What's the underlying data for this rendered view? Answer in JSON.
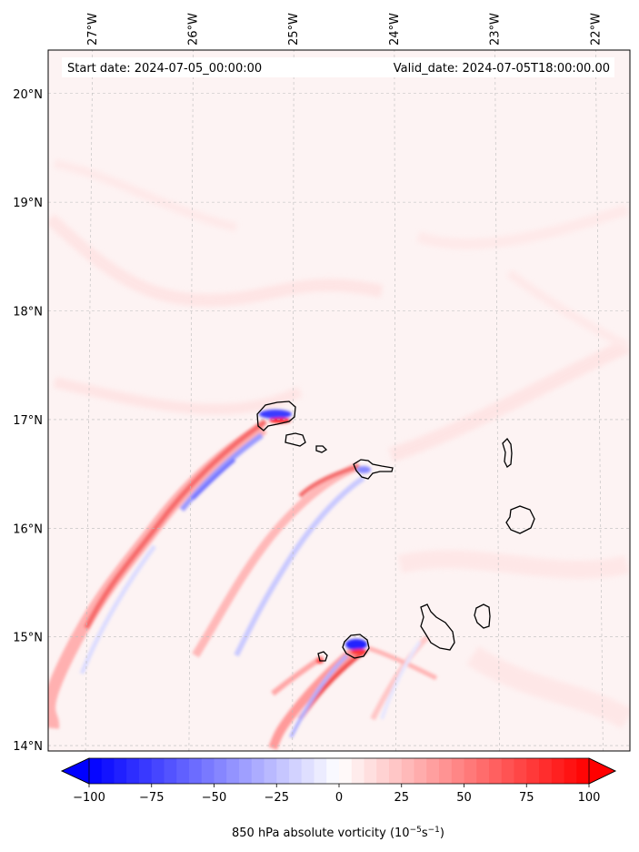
{
  "header": {
    "start_date": "Start date: 2024-07-05_00:00:00",
    "valid_date": "Valid_date: 2024-07-05T18:00:00.00"
  },
  "map": {
    "lon_range": [
      -27.4,
      -21.7
    ],
    "lat_range": [
      13.95,
      20.4
    ],
    "grid_lines": true,
    "lon_ticks": [
      {
        "value": -27,
        "label": "27°W"
      },
      {
        "value": -26,
        "label": "26°W"
      },
      {
        "value": -25,
        "label": "25°W"
      },
      {
        "value": -24,
        "label": "24°W"
      },
      {
        "value": -23,
        "label": "23°W"
      },
      {
        "value": -22,
        "label": "22°W"
      }
    ],
    "lat_ticks": [
      {
        "value": 14,
        "label": "14°N"
      },
      {
        "value": 15,
        "label": "15°N"
      },
      {
        "value": 16,
        "label": "16°N"
      },
      {
        "value": 17,
        "label": "17°N"
      },
      {
        "value": 18,
        "label": "18°N"
      },
      {
        "value": 19,
        "label": "19°N"
      },
      {
        "value": 20,
        "label": "20°N"
      }
    ],
    "background_color": "#fdf3f3",
    "coastline_color": "#000000"
  },
  "colorbar": {
    "min": -100,
    "max": 100,
    "extend": "both",
    "colormap": "bwr",
    "neg_color": "#0000ff",
    "pos_color": "#ff0000",
    "ticks": [
      {
        "value": -100,
        "label": "−100"
      },
      {
        "value": -75,
        "label": "−75"
      },
      {
        "value": -50,
        "label": "−50"
      },
      {
        "value": -25,
        "label": "−25"
      },
      {
        "value": 0,
        "label": "0"
      },
      {
        "value": 25,
        "label": "25"
      },
      {
        "value": 50,
        "label": "50"
      },
      {
        "value": 75,
        "label": "75"
      },
      {
        "value": 100,
        "label": "100"
      }
    ],
    "label_main": "850 hPa absolute vorticity (10",
    "label_exp1": "−5",
    "label_mid": "s",
    "label_exp2": "−1",
    "label_end": ")"
  }
}
